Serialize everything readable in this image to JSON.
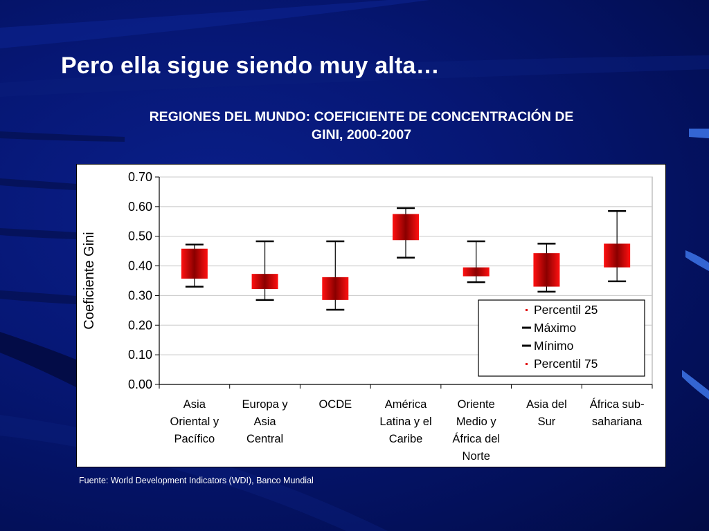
{
  "slide": {
    "title": "Pero ella sigue siendo muy alta…",
    "source": "Fuente: World Development Indicators (WDI), Banco Mundial"
  },
  "colors": {
    "background": "#061775",
    "box_fill": "#e00000",
    "box_center": "#8a0000",
    "whisker": "#000000"
  },
  "chart_data": {
    "type": "box",
    "title_lines": [
      "REGIONES DEL MUNDO: COEFICIENTE DE CONCENTRACIÓN DE",
      "GINI, 2000-2007"
    ],
    "ylabel": "Coeficiente Gini",
    "ylim": [
      0,
      0.7
    ],
    "yticks": [
      "0.00",
      "0.10",
      "0.20",
      "0.30",
      "0.40",
      "0.50",
      "0.60",
      "0.70"
    ],
    "grid": true,
    "legend_position": "bottom-right",
    "legend": [
      "Percentil 25",
      "Máximo",
      "Mínimo",
      "Percentil 75"
    ],
    "categories": [
      [
        "Asia",
        "Oriental y",
        "Pacífico"
      ],
      [
        "Europa y",
        "Asia",
        "Central"
      ],
      [
        "OCDE"
      ],
      [
        "América",
        "Latina y el",
        "Caribe"
      ],
      [
        "Oriente",
        "Medio y",
        "África del",
        "Norte"
      ],
      [
        "Asia del",
        "Sur"
      ],
      [
        "África sub-",
        "sahariana"
      ]
    ],
    "series": {
      "p25": [
        0.357,
        0.322,
        0.285,
        0.487,
        0.365,
        0.33,
        0.395
      ],
      "p75": [
        0.458,
        0.373,
        0.362,
        0.575,
        0.395,
        0.443,
        0.475
      ],
      "max": [
        0.472,
        0.483,
        0.483,
        0.595,
        0.483,
        0.475,
        0.585
      ],
      "min": [
        0.33,
        0.285,
        0.252,
        0.428,
        0.345,
        0.313,
        0.348
      ]
    }
  }
}
